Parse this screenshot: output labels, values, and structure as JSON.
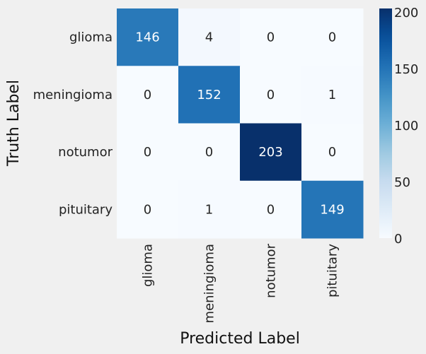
{
  "chart_data": {
    "type": "heatmap",
    "title": "",
    "xlabel": "Predicted Label",
    "ylabel": "Truth Label",
    "x_categories": [
      "glioma",
      "meningioma",
      "notumor",
      "pituitary"
    ],
    "y_categories": [
      "glioma",
      "meningioma",
      "notumor",
      "pituitary"
    ],
    "matrix": [
      [
        146,
        4,
        0,
        0
      ],
      [
        0,
        152,
        0,
        1
      ],
      [
        0,
        0,
        203,
        0
      ],
      [
        0,
        1,
        0,
        149
      ]
    ],
    "annotations": true,
    "colormap": "Blues",
    "vmin": 0,
    "vmax": 203,
    "colorbar_ticks": [
      "0",
      "50",
      "100",
      "150",
      "200"
    ],
    "colorbar_tick_values": [
      0,
      50,
      100,
      150,
      200
    ],
    "grid": false,
    "background_color": "#f0f0f0"
  }
}
